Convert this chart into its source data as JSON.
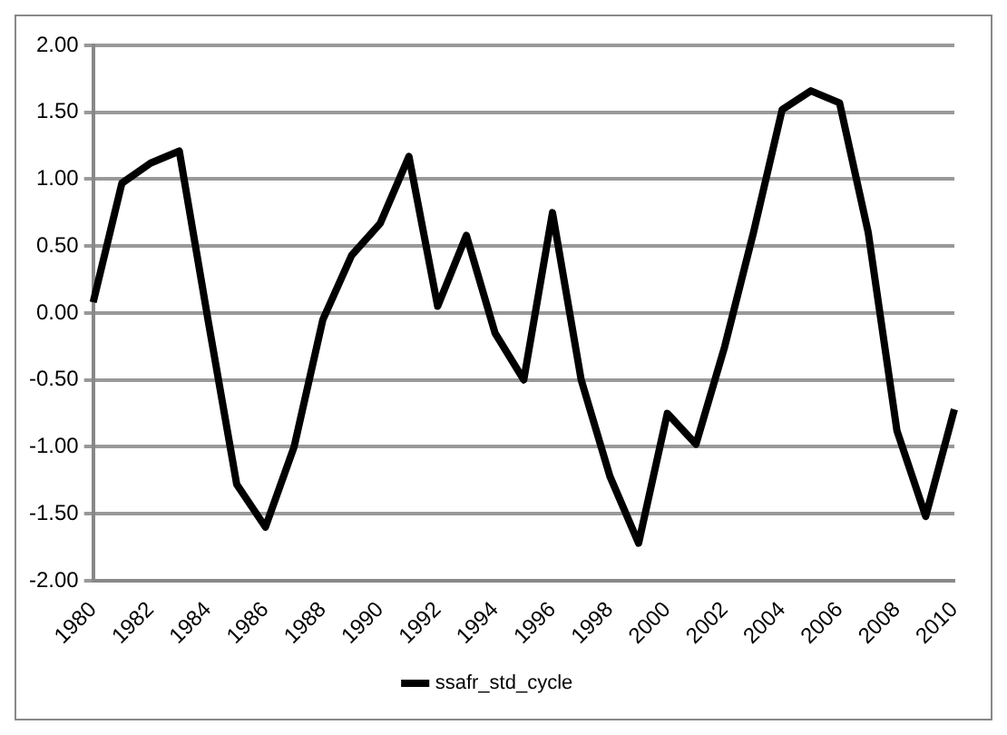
{
  "chart_data": {
    "type": "line",
    "categories": [
      "1980",
      null,
      "1982",
      null,
      "1984",
      null,
      "1986",
      null,
      "1988",
      null,
      "1990",
      null,
      "1992",
      null,
      "1994",
      null,
      "1996",
      null,
      "1998",
      null,
      "2000",
      null,
      "2002",
      null,
      "2004",
      null,
      "2006",
      null,
      "2008",
      null,
      "2010"
    ],
    "series": [
      {
        "name": "ssafr_std_cycle",
        "color": "#000000",
        "values": [
          0.08,
          0.97,
          1.12,
          1.21,
          -0.05,
          -1.28,
          -1.6,
          -1.0,
          -0.05,
          0.43,
          0.67,
          1.17,
          0.05,
          0.58,
          -0.15,
          -0.5,
          0.75,
          -0.5,
          -1.22,
          -1.72,
          -0.75,
          -0.98,
          -0.25,
          0.6,
          1.52,
          1.66,
          1.57,
          0.6,
          -0.88,
          -1.52,
          -0.72
        ]
      }
    ],
    "ylim": [
      -2,
      2
    ],
    "yticks": [
      {
        "value": -2,
        "label": "-2.00"
      },
      {
        "value": -1.5,
        "label": "-1.50"
      },
      {
        "value": -1,
        "label": "-1.00"
      },
      {
        "value": -0.5,
        "label": "-0.50"
      },
      {
        "value": 0,
        "label": "0.00"
      },
      {
        "value": 0.5,
        "label": "0.50"
      },
      {
        "value": 1,
        "label": "1.00"
      },
      {
        "value": 1.5,
        "label": "1.50"
      },
      {
        "value": 2,
        "label": "2.00"
      }
    ],
    "grid": "y",
    "legend": "bottom",
    "marker": "none",
    "line_style": "solid"
  }
}
